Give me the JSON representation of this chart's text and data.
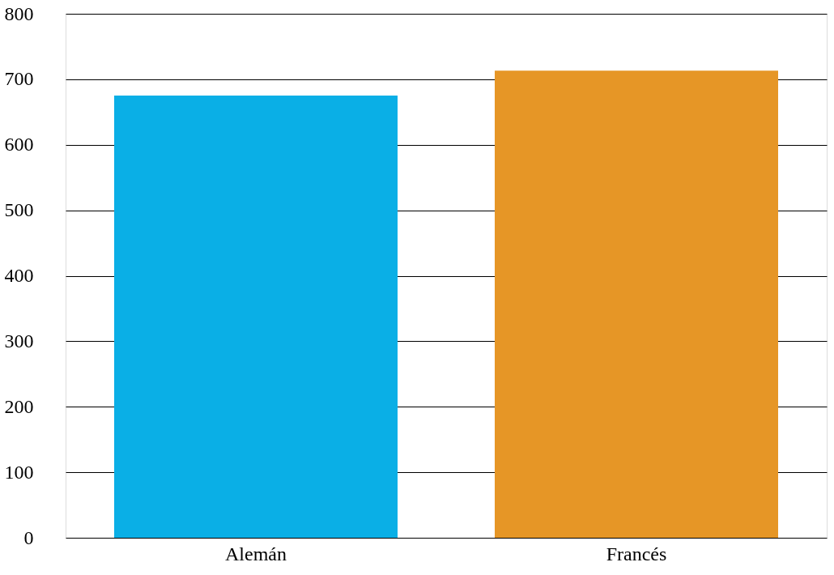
{
  "chart_data": {
    "type": "bar",
    "categories": [
      "Alemán",
      "Francés"
    ],
    "values": [
      675,
      713
    ],
    "colors": [
      "#0aafe6",
      "#e69626"
    ],
    "ylim": [
      0,
      800
    ],
    "yticks": [
      0,
      100,
      200,
      300,
      400,
      500,
      600,
      700,
      800
    ],
    "grid": "y"
  }
}
